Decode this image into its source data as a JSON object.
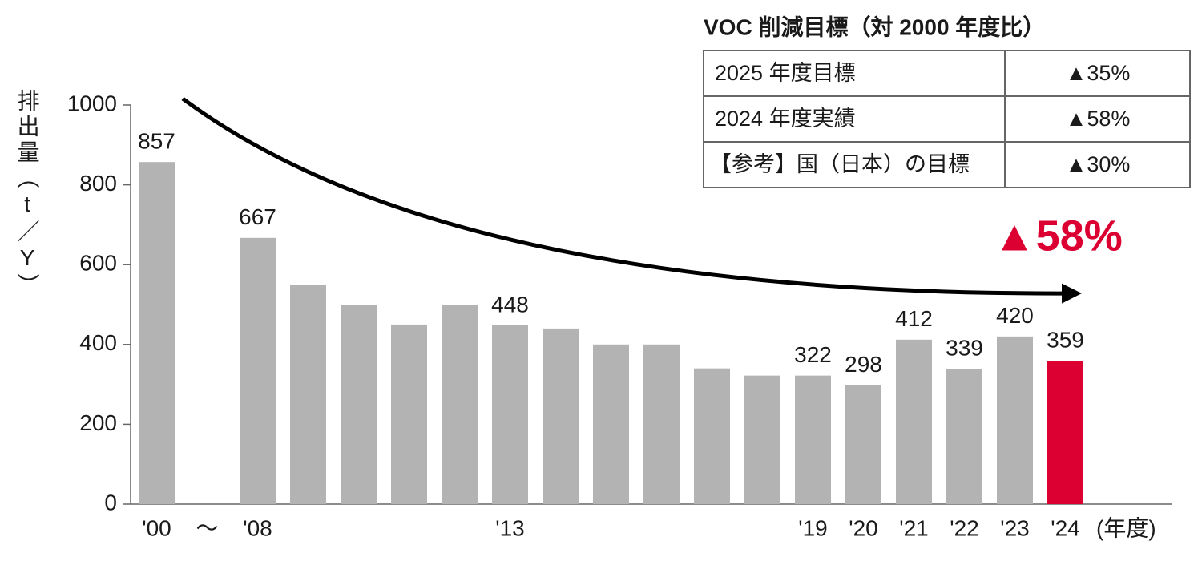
{
  "chart_data": {
    "type": "bar",
    "y_label": "排出量（t／Y）",
    "x_label": "(年度)",
    "annotation": "▲58%",
    "categories": [
      "'00",
      "～",
      "'08",
      null,
      null,
      null,
      null,
      "'13",
      null,
      null,
      null,
      null,
      null,
      "'19",
      "'20",
      "'21",
      "'22",
      "'23",
      "'24"
    ],
    "values": [
      857,
      null,
      667,
      550,
      500,
      450,
      500,
      448,
      440,
      400,
      400,
      340,
      322,
      322,
      298,
      412,
      339,
      420,
      359
    ],
    "value_labels": [
      "857",
      null,
      "667",
      null,
      null,
      null,
      null,
      "448",
      null,
      null,
      null,
      null,
      null,
      "322",
      "298",
      "412",
      "339",
      "420",
      "359"
    ],
    "colors": [
      "#b3b3b3",
      null,
      "#b3b3b3",
      "#b3b3b3",
      "#b3b3b3",
      "#b3b3b3",
      "#b3b3b3",
      "#b3b3b3",
      "#b3b3b3",
      "#b3b3b3",
      "#b3b3b3",
      "#b3b3b3",
      "#b3b3b3",
      "#b3b3b3",
      "#b3b3b3",
      "#b3b3b3",
      "#b3b3b3",
      "#b3b3b3",
      "#dc0032"
    ],
    "ylim": [
      0,
      1000
    ],
    "yticks": [
      0,
      200,
      400,
      600,
      800,
      1000
    ],
    "grid": false
  },
  "table": {
    "title": "VOC 削減目標（対 2000 年度比）",
    "rows": [
      [
        "2025 年度目標",
        "▲35%"
      ],
      [
        "2024 年度実績",
        "▲58%"
      ],
      [
        "【参考】国（日本）の目標",
        "▲30%"
      ]
    ]
  }
}
